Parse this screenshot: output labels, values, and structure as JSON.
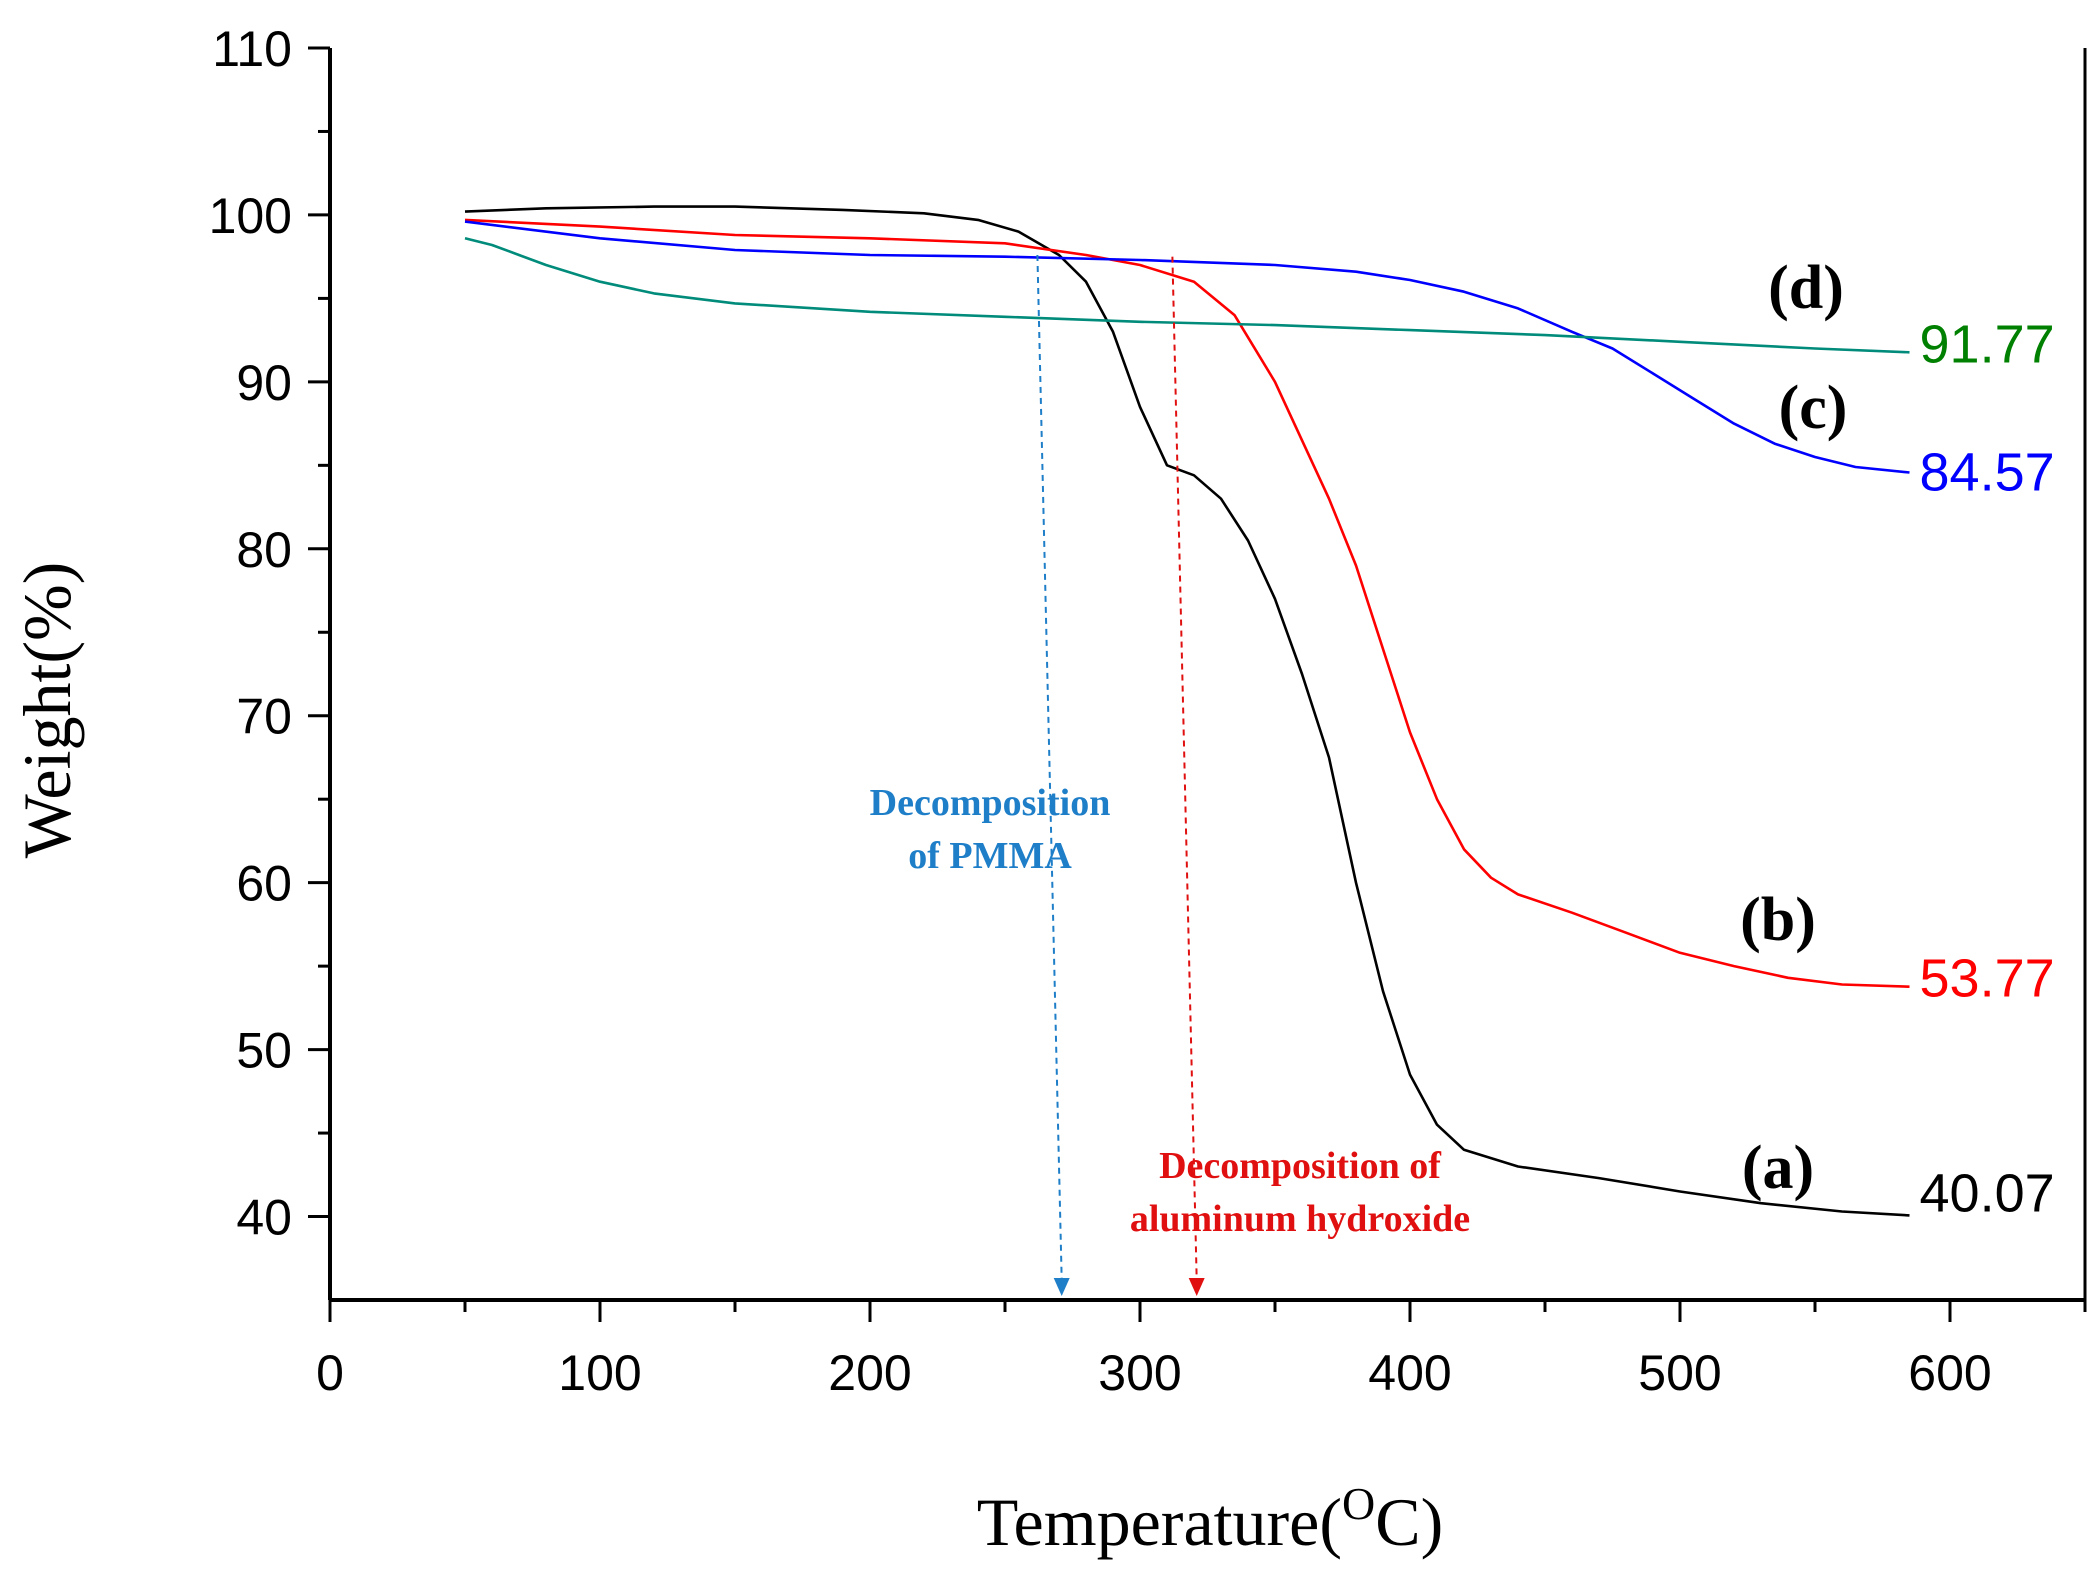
{
  "chart_data": {
    "type": "line",
    "title": "",
    "xlabel": "Temperature(",
    "xlabel_sup": "O",
    "xlabel_unit": "C)",
    "ylabel": "Weight(%)",
    "xlim": [
      0,
      650
    ],
    "ylim": [
      35,
      110
    ],
    "xticks": [
      0,
      100,
      200,
      300,
      400,
      500,
      600
    ],
    "yticks": [
      40,
      50,
      60,
      70,
      80,
      90,
      100,
      110
    ],
    "series": [
      {
        "name": "(a)",
        "color": "#000000",
        "end_label": "40.07",
        "points": [
          [
            50,
            100.2
          ],
          [
            80,
            100.4
          ],
          [
            120,
            100.5
          ],
          [
            150,
            100.5
          ],
          [
            190,
            100.3
          ],
          [
            220,
            100.1
          ],
          [
            240,
            99.7
          ],
          [
            255,
            99.0
          ],
          [
            270,
            97.6
          ],
          [
            280,
            96.0
          ],
          [
            290,
            93.0
          ],
          [
            300,
            88.5
          ],
          [
            310,
            85.0
          ],
          [
            320,
            84.4
          ],
          [
            330,
            83.0
          ],
          [
            340,
            80.5
          ],
          [
            350,
            77.0
          ],
          [
            360,
            72.5
          ],
          [
            370,
            67.5
          ],
          [
            380,
            60.0
          ],
          [
            390,
            53.5
          ],
          [
            400,
            48.5
          ],
          [
            410,
            45.5
          ],
          [
            420,
            44.0
          ],
          [
            440,
            43.0
          ],
          [
            470,
            42.3
          ],
          [
            500,
            41.5
          ],
          [
            530,
            40.8
          ],
          [
            560,
            40.3
          ],
          [
            585,
            40.07
          ]
        ]
      },
      {
        "name": "(b)",
        "color": "#ff0000",
        "end_label": "53.77",
        "points": [
          [
            50,
            99.7
          ],
          [
            100,
            99.3
          ],
          [
            150,
            98.8
          ],
          [
            200,
            98.6
          ],
          [
            250,
            98.3
          ],
          [
            280,
            97.6
          ],
          [
            300,
            97.0
          ],
          [
            320,
            96.0
          ],
          [
            335,
            94.0
          ],
          [
            350,
            90.0
          ],
          [
            360,
            86.5
          ],
          [
            370,
            83.0
          ],
          [
            380,
            79.0
          ],
          [
            390,
            74.0
          ],
          [
            400,
            69.0
          ],
          [
            410,
            65.0
          ],
          [
            420,
            62.0
          ],
          [
            430,
            60.3
          ],
          [
            440,
            59.3
          ],
          [
            460,
            58.2
          ],
          [
            480,
            57.0
          ],
          [
            500,
            55.8
          ],
          [
            520,
            55.0
          ],
          [
            540,
            54.3
          ],
          [
            560,
            53.9
          ],
          [
            585,
            53.77
          ]
        ]
      },
      {
        "name": "(c)",
        "color": "#0000ff",
        "end_label": "84.57",
        "points": [
          [
            50,
            99.6
          ],
          [
            100,
            98.6
          ],
          [
            150,
            97.9
          ],
          [
            200,
            97.6
          ],
          [
            250,
            97.5
          ],
          [
            300,
            97.3
          ],
          [
            350,
            97.0
          ],
          [
            380,
            96.6
          ],
          [
            400,
            96.1
          ],
          [
            420,
            95.4
          ],
          [
            440,
            94.4
          ],
          [
            460,
            93.0
          ],
          [
            475,
            92.0
          ],
          [
            490,
            90.5
          ],
          [
            505,
            89.0
          ],
          [
            520,
            87.5
          ],
          [
            535,
            86.3
          ],
          [
            550,
            85.5
          ],
          [
            565,
            84.9
          ],
          [
            585,
            84.57
          ]
        ]
      },
      {
        "name": "(d)",
        "color": "#008b7a",
        "end_label": "91.77",
        "label_color": "#008000",
        "points": [
          [
            50,
            98.6
          ],
          [
            60,
            98.2
          ],
          [
            70,
            97.6
          ],
          [
            80,
            97.0
          ],
          [
            90,
            96.5
          ],
          [
            100,
            96.0
          ],
          [
            120,
            95.3
          ],
          [
            150,
            94.7
          ],
          [
            200,
            94.2
          ],
          [
            250,
            93.9
          ],
          [
            300,
            93.6
          ],
          [
            350,
            93.4
          ],
          [
            400,
            93.1
          ],
          [
            450,
            92.8
          ],
          [
            500,
            92.4
          ],
          [
            550,
            92.0
          ],
          [
            585,
            91.77
          ]
        ]
      }
    ],
    "annotations": [
      {
        "text": [
          "Decomposition",
          "of PMMA"
        ],
        "color": "#1e7ec8",
        "arrow_from": [
          262,
          97.6
        ],
        "arrow_to": [
          271,
          35
        ]
      },
      {
        "text": [
          "Decomposition of",
          "aluminum hydroxide"
        ],
        "color": "#e01010",
        "arrow_from": [
          312,
          97.5
        ],
        "arrow_to": [
          321,
          35
        ]
      }
    ]
  }
}
